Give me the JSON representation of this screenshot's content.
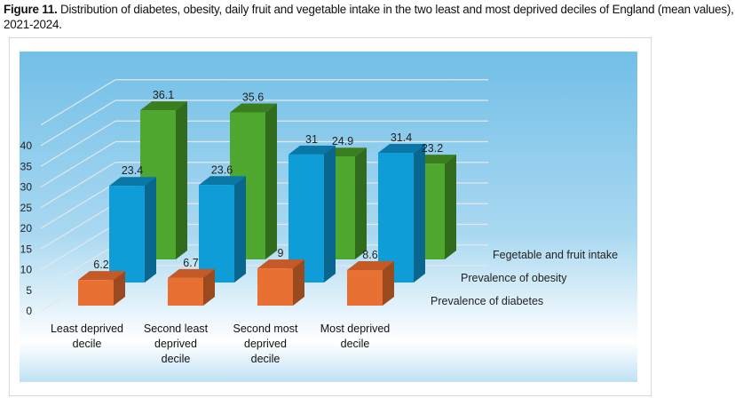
{
  "caption": {
    "label": "Figure 11.",
    "text": " Distribution of diabetes, obesity, daily fruit and vegetable intake in the two least and most deprived deciles of England (mean values), 2021-2024."
  },
  "chart_data": {
    "type": "bar",
    "variant": "3d-clustered-depth",
    "title": "",
    "categories": [
      [
        "Least deprived",
        "decile"
      ],
      [
        "Second least",
        "deprived",
        "decile"
      ],
      [
        "Second most",
        "deprived",
        "decile"
      ],
      [
        "Most deprived",
        "decile"
      ]
    ],
    "series": [
      {
        "name": "Prevalence of diabetes",
        "values": [
          6.2,
          6.7,
          9,
          8.6
        ],
        "color": "#e87033"
      },
      {
        "name": "Prevalence of obesity",
        "values": [
          23.4,
          23.6,
          31,
          31.4
        ],
        "color": "#0e9dd6"
      },
      {
        "name": "Fegetable and fruit intake",
        "values": [
          36.1,
          35.6,
          24.9,
          23.2
        ],
        "color": "#4ea72e"
      }
    ],
    "yticks": [
      0,
      5,
      10,
      15,
      20,
      25,
      30,
      35,
      40
    ],
    "ylim": [
      0,
      45
    ],
    "grid": true,
    "legend": "right, as depth-axis labels",
    "background": [
      "#79c2e8",
      "#ffffff"
    ]
  }
}
